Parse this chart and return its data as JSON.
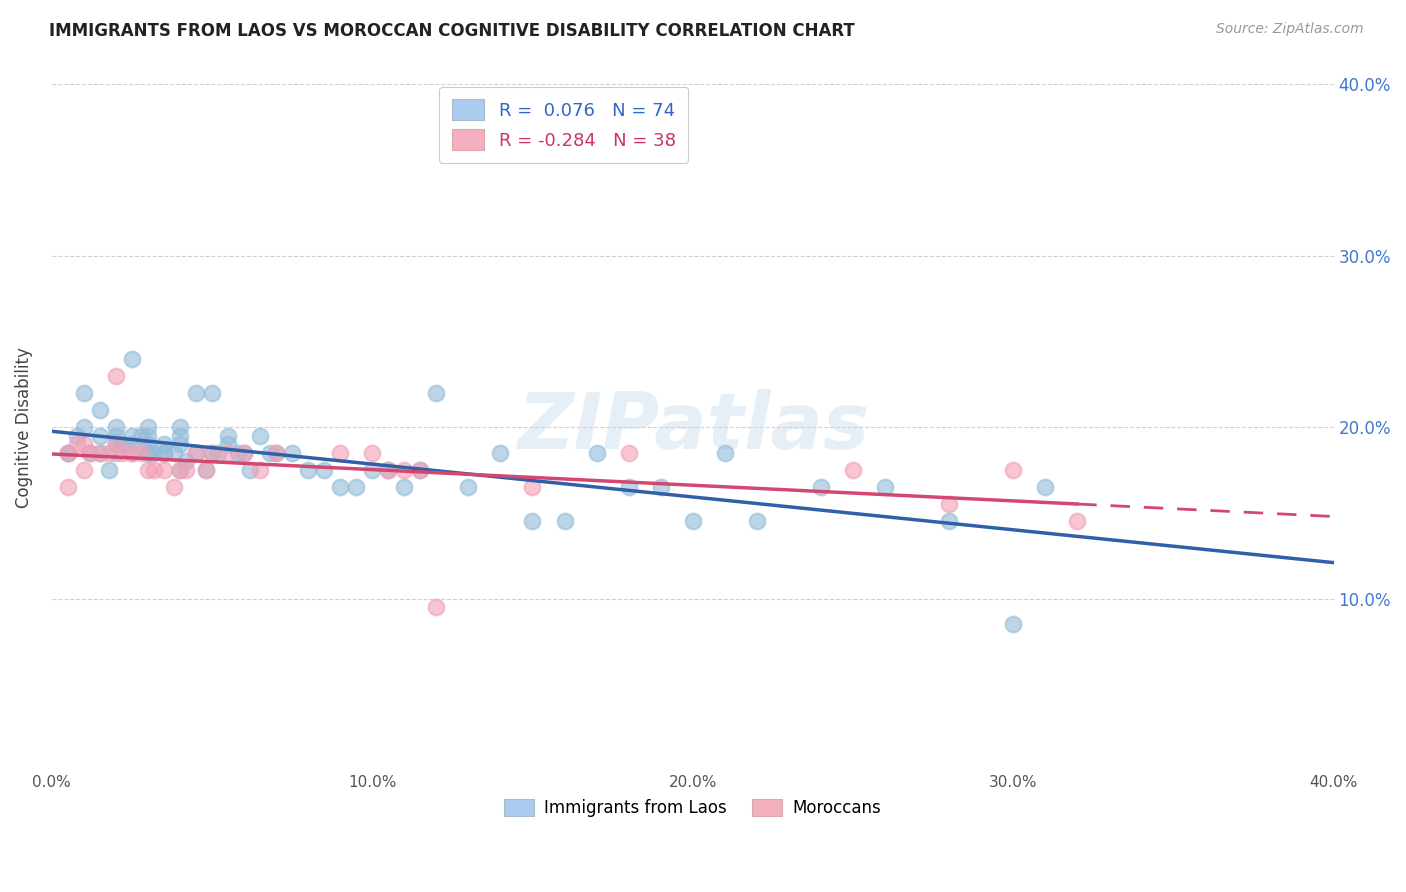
{
  "title": "IMMIGRANTS FROM LAOS VS MOROCCAN COGNITIVE DISABILITY CORRELATION CHART",
  "source": "Source: ZipAtlas.com",
  "ylabel": "Cognitive Disability",
  "xlim": [
    0.0,
    0.4
  ],
  "ylim": [
    0.0,
    0.4
  ],
  "xtick_labels": [
    "0.0%",
    "",
    "",
    "",
    "",
    "10.0%",
    "",
    "",
    "",
    "",
    "20.0%",
    "",
    "",
    "",
    "",
    "30.0%",
    "",
    "",
    "",
    "",
    "40.0%"
  ],
  "xtick_vals": [
    0.0,
    0.02,
    0.04,
    0.06,
    0.08,
    0.1,
    0.12,
    0.14,
    0.16,
    0.18,
    0.2,
    0.22,
    0.24,
    0.26,
    0.28,
    0.3,
    0.32,
    0.34,
    0.36,
    0.38,
    0.4
  ],
  "ytick_vals": [
    0.1,
    0.2,
    0.3,
    0.4
  ],
  "right_ytick_labels": [
    "10.0%",
    "20.0%",
    "30.0%",
    "40.0%"
  ],
  "right_ytick_vals": [
    0.1,
    0.2,
    0.3,
    0.4
  ],
  "blue_color": "#92bcd8",
  "pink_color": "#f2a0b5",
  "blue_line_color": "#3060a8",
  "pink_line_color": "#d44870",
  "legend_blue_label": "R =  0.076   N = 74",
  "legend_pink_label": "R = -0.284   N = 38",
  "legend_blue_patch": "#aaccee",
  "legend_pink_patch": "#f4b0c0",
  "watermark": "ZIPatlas",
  "bottom_legend_blue": "Immigrants from Laos",
  "bottom_legend_pink": "Moroccans",
  "blue_x": [
    0.005,
    0.01,
    0.01,
    0.015,
    0.015,
    0.015,
    0.02,
    0.02,
    0.02,
    0.02,
    0.025,
    0.025,
    0.025,
    0.03,
    0.03,
    0.03,
    0.03,
    0.035,
    0.035,
    0.04,
    0.04,
    0.04,
    0.045,
    0.045,
    0.05,
    0.05,
    0.055,
    0.055,
    0.06,
    0.065,
    0.07,
    0.075,
    0.08,
    0.085,
    0.09,
    0.095,
    0.1,
    0.105,
    0.11,
    0.115,
    0.12,
    0.13,
    0.14,
    0.15,
    0.16,
    0.17,
    0.18,
    0.19,
    0.2,
    0.21,
    0.22,
    0.24,
    0.26,
    0.28,
    0.3,
    0.31,
    0.025,
    0.03,
    0.035,
    0.04,
    0.005,
    0.008,
    0.012,
    0.018,
    0.022,
    0.028,
    0.032,
    0.038,
    0.042,
    0.048,
    0.052,
    0.058,
    0.062,
    0.068
  ],
  "blue_y": [
    0.185,
    0.22,
    0.2,
    0.195,
    0.21,
    0.185,
    0.19,
    0.195,
    0.2,
    0.185,
    0.195,
    0.185,
    0.19,
    0.195,
    0.185,
    0.19,
    0.2,
    0.185,
    0.19,
    0.19,
    0.195,
    0.2,
    0.185,
    0.22,
    0.185,
    0.22,
    0.19,
    0.195,
    0.185,
    0.195,
    0.185,
    0.185,
    0.175,
    0.175,
    0.165,
    0.165,
    0.175,
    0.175,
    0.165,
    0.175,
    0.22,
    0.165,
    0.185,
    0.145,
    0.145,
    0.185,
    0.165,
    0.165,
    0.145,
    0.185,
    0.145,
    0.165,
    0.165,
    0.145,
    0.085,
    0.165,
    0.24,
    0.185,
    0.185,
    0.175,
    0.185,
    0.195,
    0.185,
    0.175,
    0.19,
    0.195,
    0.185,
    0.185,
    0.18,
    0.175,
    0.185,
    0.185,
    0.175,
    0.185
  ],
  "pink_x": [
    0.005,
    0.008,
    0.01,
    0.012,
    0.015,
    0.018,
    0.02,
    0.022,
    0.025,
    0.028,
    0.03,
    0.032,
    0.035,
    0.038,
    0.04,
    0.042,
    0.045,
    0.048,
    0.05,
    0.055,
    0.06,
    0.065,
    0.07,
    0.09,
    0.1,
    0.105,
    0.11,
    0.115,
    0.12,
    0.15,
    0.18,
    0.25,
    0.28,
    0.3,
    0.32,
    0.005,
    0.01,
    0.02
  ],
  "pink_y": [
    0.185,
    0.19,
    0.19,
    0.185,
    0.185,
    0.185,
    0.19,
    0.185,
    0.185,
    0.185,
    0.175,
    0.175,
    0.175,
    0.165,
    0.175,
    0.175,
    0.185,
    0.175,
    0.185,
    0.185,
    0.185,
    0.175,
    0.185,
    0.185,
    0.185,
    0.175,
    0.175,
    0.175,
    0.095,
    0.165,
    0.185,
    0.175,
    0.155,
    0.175,
    0.145,
    0.165,
    0.175,
    0.23
  ]
}
